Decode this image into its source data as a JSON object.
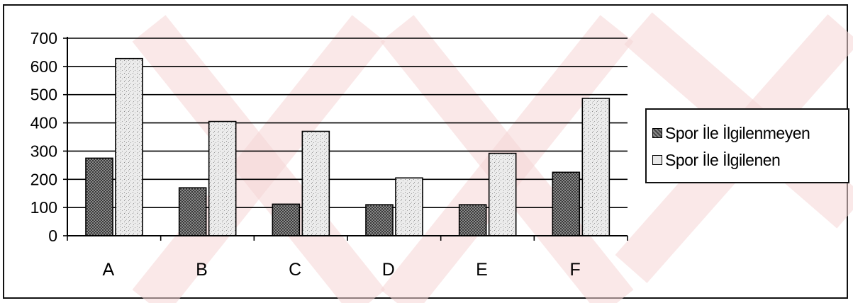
{
  "chart_data": {
    "type": "bar",
    "categories": [
      "A",
      "B",
      "C",
      "D",
      "E",
      "F"
    ],
    "series": [
      {
        "name": "Spor İle İlgilenmeyen",
        "values": [
          275,
          170,
          112,
          110,
          110,
          225
        ]
      },
      {
        "name": "Spor İle İlgilenen",
        "values": [
          628,
          405,
          370,
          205,
          292,
          487
        ]
      }
    ],
    "ylim": [
      0,
      700
    ],
    "yticks": [
      "0",
      "100",
      "200",
      "300",
      "400",
      "500",
      "600",
      "700"
    ],
    "grid": true,
    "legend_position": "right"
  },
  "colors": {
    "series_dark": "#5a5a5a",
    "series_light": "#dcdcdc",
    "watermark": "#f6d6d6"
  }
}
